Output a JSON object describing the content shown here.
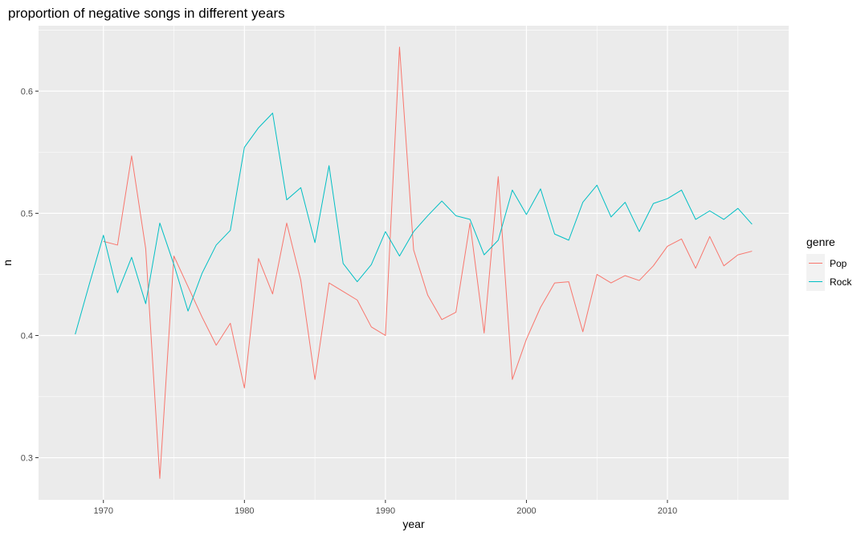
{
  "chart_data": {
    "type": "line",
    "title": "proportion of negative songs in different years",
    "xlabel": "year",
    "ylabel": "n",
    "xlim": [
      1965.4,
      2018.6
    ],
    "ylim": [
      0.2655,
      0.6535
    ],
    "x_ticks": [
      1970,
      1980,
      1990,
      2000,
      2010
    ],
    "x_tick_labels": [
      "1970",
      "1980",
      "1990",
      "2000",
      "2010"
    ],
    "y_ticks": [
      0.3,
      0.4,
      0.5,
      0.6
    ],
    "y_tick_labels": [
      "0.3",
      "0.4",
      "0.5",
      "0.6"
    ],
    "grid": true,
    "legend": {
      "title": "genre",
      "position": "right"
    },
    "series": [
      {
        "name": "Pop",
        "color": "#F8766D",
        "points": [
          [
            1970,
            0.477
          ],
          [
            1971,
            0.474
          ],
          [
            1972,
            0.547
          ],
          [
            1973,
            0.471
          ],
          [
            1974,
            0.283
          ],
          [
            1975,
            0.465
          ],
          [
            1976,
            0.44
          ],
          [
            1977,
            0.415
          ],
          [
            1978,
            0.392
          ],
          [
            1979,
            0.41
          ],
          [
            1980,
            0.357
          ],
          [
            1981,
            0.463
          ],
          [
            1982,
            0.434
          ],
          [
            1983,
            0.492
          ],
          [
            1984,
            0.445
          ],
          [
            1985,
            0.364
          ],
          [
            1986,
            0.443
          ],
          [
            1987,
            0.436
          ],
          [
            1988,
            0.429
          ],
          [
            1989,
            0.407
          ],
          [
            1990,
            0.4
          ],
          [
            1991,
            0.636
          ],
          [
            1992,
            0.47
          ],
          [
            1993,
            0.433
          ],
          [
            1994,
            0.413
          ],
          [
            1995,
            0.419
          ],
          [
            1996,
            0.492
          ],
          [
            1997,
            0.402
          ],
          [
            1998,
            0.53
          ],
          [
            1999,
            0.364
          ],
          [
            2000,
            0.397
          ],
          [
            2001,
            0.423
          ],
          [
            2002,
            0.443
          ],
          [
            2003,
            0.444
          ],
          [
            2004,
            0.403
          ],
          [
            2005,
            0.45
          ],
          [
            2006,
            0.443
          ],
          [
            2007,
            0.449
          ],
          [
            2008,
            0.445
          ],
          [
            2009,
            0.457
          ],
          [
            2010,
            0.473
          ],
          [
            2011,
            0.479
          ],
          [
            2012,
            0.455
          ],
          [
            2013,
            0.481
          ],
          [
            2014,
            0.457
          ],
          [
            2015,
            0.466
          ],
          [
            2016,
            0.469
          ]
        ]
      },
      {
        "name": "Rock",
        "color": "#00BFC4",
        "points": [
          [
            1968,
            0.401
          ],
          [
            1969,
            0.442
          ],
          [
            1970,
            0.482
          ],
          [
            1971,
            0.435
          ],
          [
            1972,
            0.464
          ],
          [
            1973,
            0.426
          ],
          [
            1974,
            0.492
          ],
          [
            1975,
            0.458
          ],
          [
            1976,
            0.42
          ],
          [
            1977,
            0.451
          ],
          [
            1978,
            0.474
          ],
          [
            1979,
            0.486
          ],
          [
            1980,
            0.554
          ],
          [
            1981,
            0.57
          ],
          [
            1982,
            0.582
          ],
          [
            1983,
            0.511
          ],
          [
            1984,
            0.521
          ],
          [
            1985,
            0.476
          ],
          [
            1986,
            0.539
          ],
          [
            1987,
            0.459
          ],
          [
            1988,
            0.444
          ],
          [
            1989,
            0.458
          ],
          [
            1990,
            0.485
          ],
          [
            1991,
            0.465
          ],
          [
            1992,
            0.485
          ],
          [
            1993,
            0.498
          ],
          [
            1994,
            0.51
          ],
          [
            1995,
            0.498
          ],
          [
            1996,
            0.495
          ],
          [
            1997,
            0.466
          ],
          [
            1998,
            0.478
          ],
          [
            1999,
            0.519
          ],
          [
            2000,
            0.499
          ],
          [
            2001,
            0.52
          ],
          [
            2002,
            0.483
          ],
          [
            2003,
            0.478
          ],
          [
            2004,
            0.509
          ],
          [
            2005,
            0.523
          ],
          [
            2006,
            0.497
          ],
          [
            2007,
            0.509
          ],
          [
            2008,
            0.485
          ],
          [
            2009,
            0.508
          ],
          [
            2010,
            0.512
          ],
          [
            2011,
            0.519
          ],
          [
            2012,
            0.495
          ],
          [
            2013,
            0.502
          ],
          [
            2014,
            0.495
          ],
          [
            2015,
            0.504
          ],
          [
            2016,
            0.491
          ]
        ]
      }
    ]
  }
}
